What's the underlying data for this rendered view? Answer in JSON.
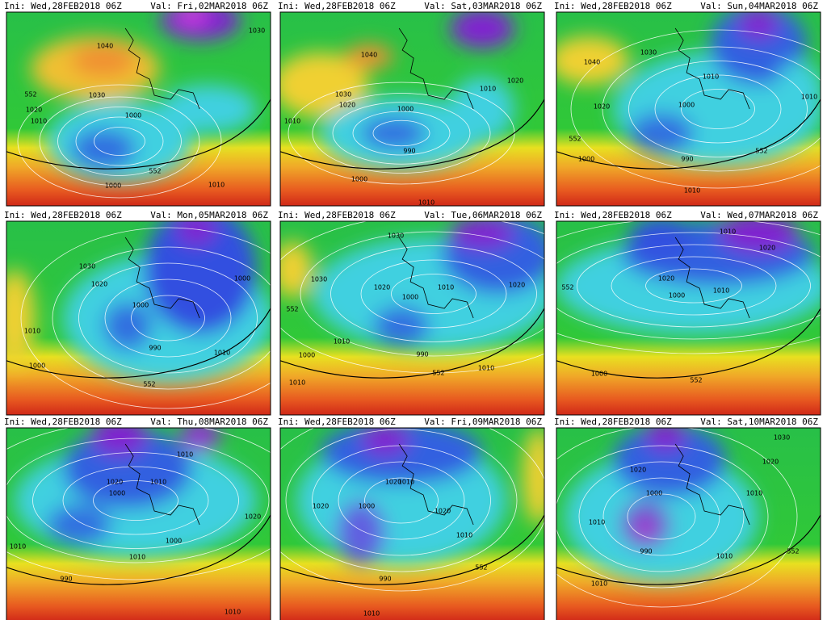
{
  "panels": [
    {
      "ini": "Ini: Wed,28FEB2018 06Z",
      "val": "Val: Fri,02MAR2018 06Z",
      "contour_labels": [
        "1040",
        "1030",
        "1020",
        "1010",
        "1000",
        "552",
        "1000",
        "1010",
        "1030",
        "552"
      ]
    },
    {
      "ini": "Ini: Wed,28FEB2018 06Z",
      "val": "Val: Sat,03MAR2018 06Z",
      "contour_labels": [
        "1040",
        "1030",
        "1020",
        "1010",
        "1000",
        "990",
        "1000",
        "1010",
        "1020",
        "1010"
      ]
    },
    {
      "ini": "Ini: Wed,28FEB2018 06Z",
      "val": "Val: Sun,04MAR2018 06Z",
      "contour_labels": [
        "1040",
        "1030",
        "1010",
        "1000",
        "1020",
        "552",
        "1000",
        "990",
        "552",
        "1010",
        "1010"
      ]
    },
    {
      "ini": "Ini: Wed,28FEB2018 06Z",
      "val": "Val: Mon,05MAR2018 06Z",
      "contour_labels": [
        "1030",
        "1020",
        "1000",
        "1010",
        "990",
        "1000",
        "552",
        "1010",
        "1000"
      ]
    },
    {
      "ini": "Ini: Wed,28FEB2018 06Z",
      "val": "Val: Tue,06MAR2018 06Z",
      "contour_labels": [
        "1030",
        "1030",
        "1020",
        "1000",
        "1010",
        "552",
        "1010",
        "990",
        "1000",
        "552",
        "1010",
        "1010",
        "1020"
      ]
    },
    {
      "ini": "Ini: Wed,28FEB2018 06Z",
      "val": "Val: Wed,07MAR2018 06Z",
      "contour_labels": [
        "1010",
        "1020",
        "1020",
        "1000",
        "1010",
        "552",
        "1000",
        "552"
      ]
    },
    {
      "ini": "Ini: Wed,28FEB2018 06Z",
      "val": "Val: Thu,08MAR2018 06Z",
      "contour_labels": [
        "1010",
        "1020",
        "1010",
        "1000",
        "1020",
        "1000",
        "1010",
        "1010",
        "990",
        "1010"
      ]
    },
    {
      "ini": "Ini: Wed,28FEB2018 06Z",
      "val": "Val: Fri,09MAR2018 06Z",
      "contour_labels": [
        "1020",
        "1010",
        "1020",
        "1000",
        "1020",
        "1010",
        "990",
        "552",
        "1010"
      ]
    },
    {
      "ini": "Ini: Wed,28FEB2018 06Z",
      "val": "Val: Sat,10MAR2018 06Z",
      "contour_labels": [
        "1030",
        "1020",
        "1020",
        "1000",
        "1010",
        "1010",
        "990",
        "1010",
        "552",
        "1010"
      ]
    }
  ]
}
